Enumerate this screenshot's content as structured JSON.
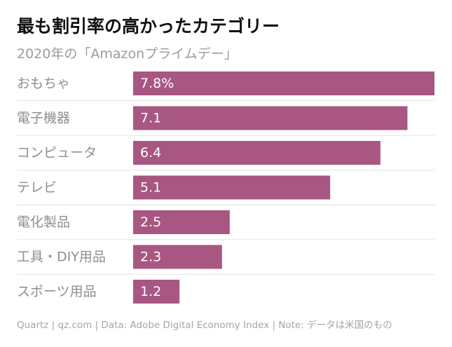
{
  "title": "最も割引率の高かったカテゴリー",
  "subtitle": "2020年の「Amazonプライムデー」",
  "footer": "Quartz | qz.com | Data: Adobe Digital Economy Index | Note: データは米国のもの",
  "colors": {
    "bar": "#a85682",
    "category_text": "#8f8f8f",
    "value_text": "#ffffff",
    "divider": "#e4e4e4"
  },
  "chart_data": {
    "type": "bar",
    "orientation": "horizontal",
    "categories": [
      "おもちゃ",
      "電子機器",
      "コンピュータ",
      "テレビ",
      "電化製品",
      "工具・DIY用品",
      "スポーツ用品"
    ],
    "values": [
      7.8,
      7.1,
      6.4,
      5.1,
      2.5,
      2.3,
      1.2
    ],
    "value_labels": [
      "7.8%",
      "7.1",
      "6.4",
      "5.1",
      "2.5",
      "2.3",
      "1.2"
    ],
    "xlim": [
      0,
      7.8
    ],
    "grid": false,
    "title": "最も割引率の高かったカテゴリー",
    "subtitle": "2020年の「Amazonプライムデー」"
  }
}
